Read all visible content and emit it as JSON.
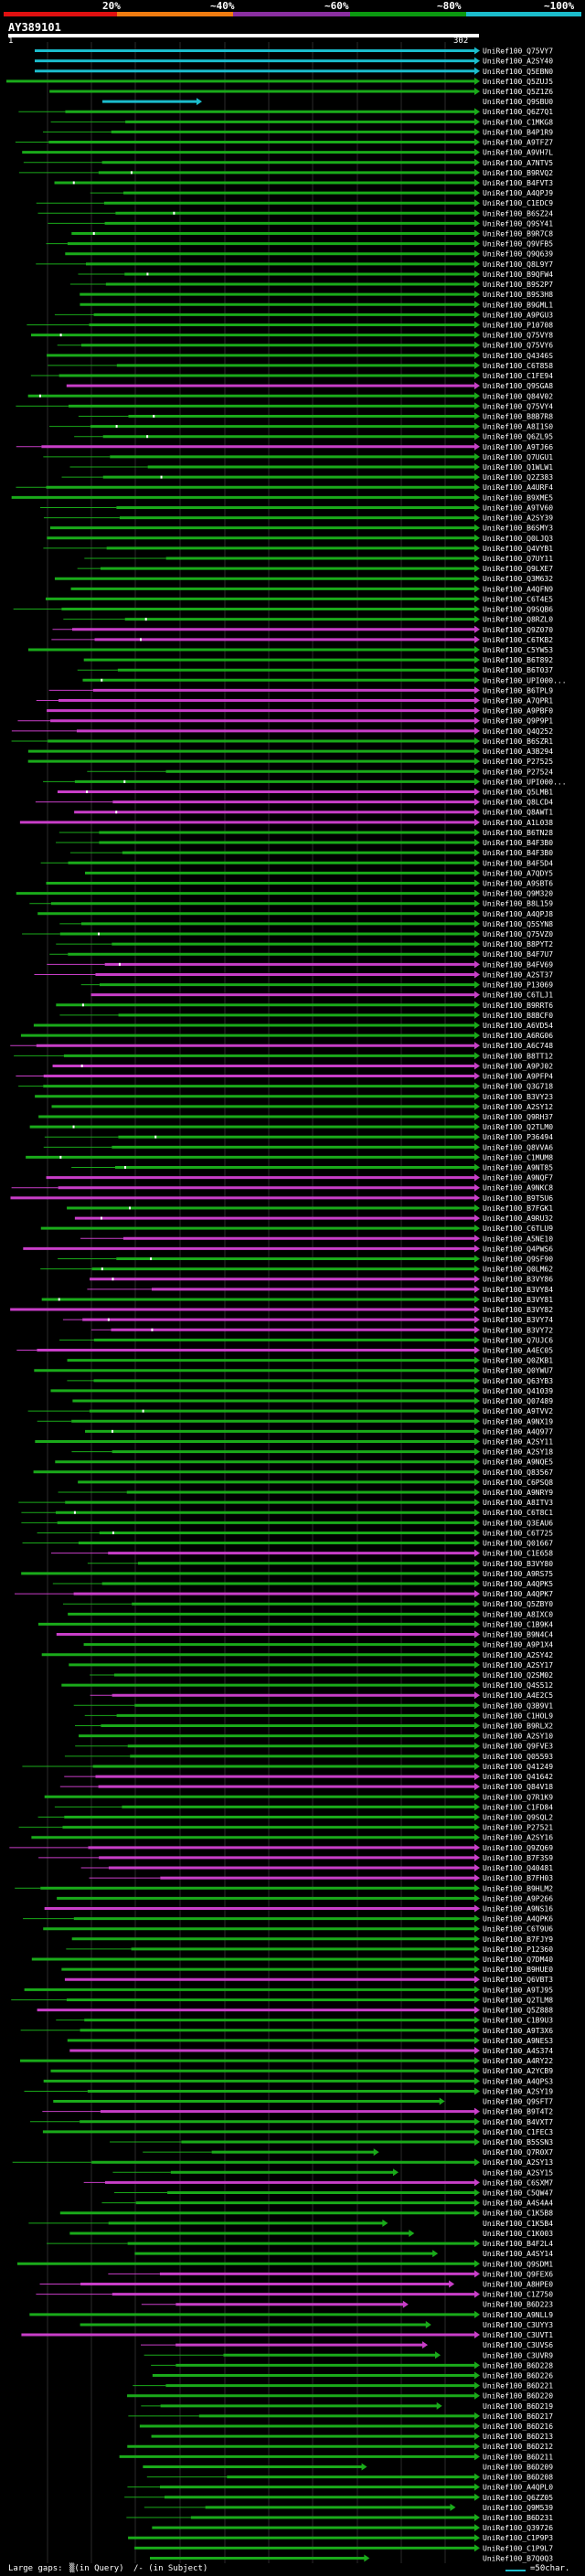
{
  "chart_data": {
    "type": "alignment_overview",
    "accession": "AY389101",
    "query_range": {
      "start_label": "1",
      "end_label": "302",
      "start": 1,
      "end": 302
    },
    "identity_legend": [
      {
        "label": "20%",
        "color": "#e01010"
      },
      {
        "label": "~40%",
        "color": "#f07c10"
      },
      {
        "label": "~60%",
        "color": "#8a2fa0"
      },
      {
        "label": "~80%",
        "color": "#0b9910"
      },
      {
        "label": "~100%",
        "color": "#1bbccc"
      }
    ],
    "colors": {
      "cyan": "#1bbccc",
      "green": "#1aaa1a",
      "magenta": "#c83ec8",
      "grid": "#2a2a2a",
      "white": "#ffffff"
    },
    "ids": [
      "UniRef100_Q75VY7",
      "UniRef100_A2SY40",
      "UniRef100_Q5EBN0",
      "UniRef100_Q5ZUJ5",
      "UniRef100_Q5Z1Z6",
      "UniRef100_Q9SBU0",
      "UniRef100_Q6Z7Q1",
      "UniRef100_C1MKG8",
      "UniRef100_B4P1R9",
      "UniRef100_A9TFZ7",
      "UniRef100_A9VH7L",
      "UniRef100_A7NTV5",
      "UniRef100_B9RVQ2",
      "UniRef100_B4FVT3",
      "UniRef100_A4QPJ9",
      "UniRef100_C1EDC9",
      "UniRef100_B6SZ24",
      "UniRef100_Q9SY41",
      "UniRef100_B9R7C8",
      "UniRef100_Q9VFB5",
      "UniRef100_Q9Q639",
      "UniRef100_Q8L9Y7",
      "UniRef100_B9QFW4",
      "UniRef100_B9S2P7",
      "UniRef100_B9S3H8",
      "UniRef100_B9GML1",
      "UniRef100_A9PGU3",
      "UniRef100_P10708",
      "UniRef100_Q75VY8",
      "UniRef100_Q75VY6",
      "UniRef100_Q4346S",
      "UniRef100_C6T858",
      "UniRef100_C1FE94",
      "UniRef100_Q9SGA8",
      "UniRef100_Q84V02",
      "UniRef100_Q75VY4",
      "UniRef100_B8B7R8",
      "UniRef100_A8I1S0",
      "UniRef100_Q6ZL95",
      "UniRef100_A9TJ66",
      "UniRef100_Q7UGU1",
      "UniRef100_Q1WLW1",
      "UniRef100_Q2Z383",
      "UniRef100_A4URF4",
      "UniRef100_B9XME5",
      "UniRef100_A9TV60",
      "UniRef100_A2SY39",
      "UniRef100_B6SMY3",
      "UniRef100_Q0LJQ3",
      "UniRef100_Q4VYB1",
      "UniRef100_Q7UY11",
      "UniRef100_Q9LXE7",
      "UniRef100_Q3M632",
      "UniRef100_A4QFN9",
      "UniRef100_C6T4E5",
      "UniRef100_Q9SQB6",
      "UniRef100_Q8RZL0",
      "UniRef100_Q9Z070",
      "UniRef100_C6TKB2",
      "UniRef100_C5YW53",
      "UniRef100_B6T892",
      "UniRef100_B6T037",
      "UniRef100_UPI000...",
      "UniRef100_B6TPL9",
      "UniRef100_A7QPR1",
      "UniRef100_A9PBF0",
      "UniRef100_Q9P9P1",
      "UniRef100_Q4Q252",
      "UniRef100_B6SZR1",
      "UniRef100_A3B294",
      "UniRef100_P27525",
      "UniRef100_P27524",
      "UniRef100_UPI000...",
      "UniRef100_Q5LMB1",
      "UniRef100_Q8LCD4",
      "UniRef100_Q8AWT1",
      "UniRef100_A1L038",
      "UniRef100_B6TN28",
      "UniRef100_B4F3B0",
      "UniRef100_B4F3B0",
      "UniRef100_B4F5D4",
      "UniRef100_A7QDY5",
      "UniRef100_A9SBT6",
      "UniRef100_Q9M320",
      "UniRef100_B8L159",
      "UniRef100_A4QPJ8",
      "UniRef100_Q5SYN8",
      "UniRef100_Q75VZ0",
      "UniRef100_B8PYT2",
      "UniRef100_B4F7U7",
      "UniRef100_B4FV69",
      "UniRef100_A2ST37",
      "UniRef100_P13069",
      "UniRef100_C6TLJ1",
      "UniRef100_B9RRT6",
      "UniRef100_B8BCF0",
      "UniRef100_A6VD54",
      "UniRef100_A6RG06",
      "UniRef100_A6C748",
      "UniRef100_B8TT12",
      "UniRef100_A9PJ02",
      "UniRef100_A9PFP4",
      "UniRef100_Q3G718",
      "UniRef100_B3VY23",
      "UniRef100_A2SY12",
      "UniRef100_Q9RH37",
      "UniRef100_Q2TLM0",
      "UniRef100_P36494",
      "UniRef100_Q8VVA6",
      "UniRef100_C1MUM8",
      "UniRef100_A9NT85",
      "UniRef100_A9NQF7",
      "UniRef100_A9NKC8",
      "UniRef100_B9T5U6",
      "UniRef100_B7FGK1",
      "UniRef100_A9RU32",
      "UniRef100_C6TLU9",
      "UniRef100_A5NE10",
      "UniRef100_Q4PWS6",
      "UniRef100_Q9SF90",
      "UniRef100_Q0LM62",
      "UniRef100_B3VY86",
      "UniRef100_B3VY84",
      "UniRef100_B3VY81",
      "UniRef100_B3VY82",
      "UniRef100_B3VY74",
      "UniRef100_B3VY72",
      "UniRef100_Q7UJC6",
      "UniRef100_A4EC05",
      "UniRef100_Q0ZKB1",
      "UniRef100_Q0YWU7",
      "UniRef100_Q63YB3",
      "UniRef100_Q41039",
      "UniRef100_Q07489",
      "UniRef100_A9TVV2",
      "UniRef100_A9NX19",
      "UniRef100_A4Q977",
      "UniRef100_A2SY11",
      "UniRef100_A2SY18",
      "UniRef100_A9NQE5",
      "UniRef100_Q83567",
      "UniRef100_C6PSQ8",
      "UniRef100_A9NRY9",
      "UniRef100_A8ITV3",
      "UniRef100_C6T8C1",
      "UniRef100_Q3EAU6",
      "UniRef100_C6T725",
      "UniRef100_Q01667",
      "UniRef100_C1E658",
      "UniRef100_B3VY80",
      "UniRef100_A9RS75",
      "UniRef100_A4QPK5",
      "UniRef100_A4QPK7",
      "UniRef100_Q5ZBY0",
      "UniRef100_A8IXC0",
      "UniRef100_C1B9K4",
      "UniRef100_B9N4C4",
      "UniRef100_A9P1X4",
      "UniRef100_A2SY42",
      "UniRef100_A2SY17",
      "UniRef100_Q2SM02",
      "UniRef100_Q4S512",
      "UniRef100_A4E2C5",
      "UniRef100_Q3B9V1",
      "UniRef100_C1HOL9",
      "UniRef100_B9RLX2",
      "UniRef100_A2SY10",
      "UniRef100_Q9FVE3",
      "UniRef100_Q05593",
      "UniRef100_Q41249",
      "UniRef100_Q41642",
      "UniRef100_Q84V18",
      "UniRef100_Q7R1K9",
      "UniRef100_C1FD84",
      "UniRef100_Q9SQL2",
      "UniRef100_P27521",
      "UniRef100_A2SY16",
      "UniRef100_Q9ZQ69",
      "UniRef100_B7F3S9",
      "UniRef100_Q40481",
      "UniRef100_B7FH03",
      "UniRef100_B9HLM2",
      "UniRef100_A9P266",
      "UniRef100_A9NS16",
      "UniRef100_A4QPK6",
      "UniRef100_C6T9U6",
      "UniRef100_B7FJY9",
      "UniRef100_P12360",
      "UniRef100_Q7DM40",
      "UniRef100_B9HUE0",
      "UniRef100_Q6VBT3",
      "UniRef100_A9TJ95",
      "UniRef100_Q2TLM8",
      "UniRef100_Q5Z888",
      "UniRef100_C1B9U3",
      "UniRef100_A9T3X6",
      "UniRef100_A9NES3",
      "UniRef100_A4S374",
      "UniRef100_A4RY22",
      "UniRef100_A2YCB9",
      "UniRef100_A4QPS3",
      "UniRef100_A2SY19",
      "UniRef100_Q9SFT7",
      "UniRef100_B9T4T2",
      "UniRef100_B4VXT7",
      "UniRef100_C1FEC3",
      "UniRef100_B5SSN3",
      "UniRef100_Q7R0X7",
      "UniRef100_A2SY13",
      "UniRef100_A2SY15",
      "UniRef100_C6SXM7",
      "UniRef100_C5QW47",
      "UniRef100_A4S4A4",
      "UniRef100_C1K5B8",
      "UniRef100_C1K5B4",
      "UniRef100_C1K003",
      "UniRef100_B4F2L4",
      "UniRef100_A4SY14",
      "UniRef100_Q9SDM1",
      "UniRef100_Q9FEX6",
      "UniRef100_A8HPE0",
      "UniRef100_C1Z750",
      "UniRef100_B6D223",
      "UniRef100_A9NLL9",
      "UniRef100_C3UYY3",
      "UniRef100_C3UVT1",
      "UniRef100_C3UVS6",
      "UniRef100_C3UVR9",
      "UniRef100_B6D228",
      "UniRef100_B6D226",
      "UniRef100_B6D221",
      "UniRef100_B6D220",
      "UniRef100_B6D219",
      "UniRef100_B6D217",
      "UniRef100_B6D216",
      "UniRef100_B6D213",
      "UniRef100_B6D212",
      "UniRef100_B6D211",
      "UniRef100_B6D209",
      "UniRef100_B6D208",
      "UniRef100_A4QPL0",
      "UniRef100_Q6ZZ05",
      "UniRef100_Q9M539",
      "UniRef100_B6D231",
      "UniRef100_Q39726",
      "UniRef100_C1P9P3",
      "UniRef100_C1P9L7",
      "UniRef100_B7Q0Q3"
    ],
    "gaps_legend": {
      "prefix": "Large gaps:",
      "query": "▒(in Query)",
      "subject": "/- (in Subject)",
      "scale": "=50char."
    }
  }
}
